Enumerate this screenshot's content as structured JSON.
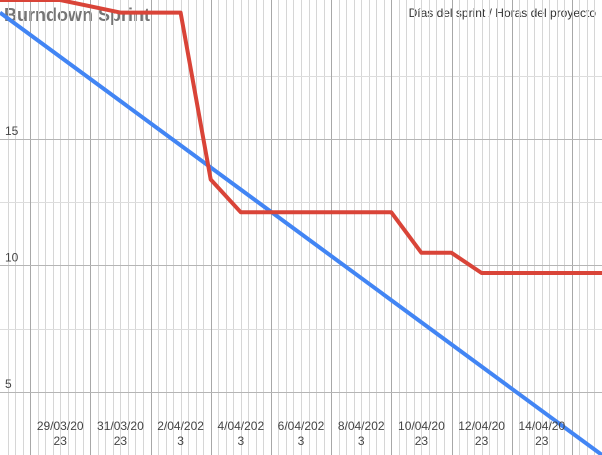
{
  "chart_data": {
    "type": "line",
    "title": "Burndown Sprint",
    "subtitle": "Días del sprint / Horas del proyecto",
    "x_tick_labels": [
      [
        "29/03/20",
        "23"
      ],
      [
        "31/03/20",
        "23"
      ],
      [
        "2/04/202",
        "3"
      ],
      [
        "4/04/202",
        "3"
      ],
      [
        "6/04/202",
        "3"
      ],
      [
        "8/04/202",
        "3"
      ],
      [
        "10/04/20",
        "23"
      ],
      [
        "12/04/20",
        "23"
      ],
      [
        "14/04/20",
        "23"
      ]
    ],
    "y_ticks": [
      5,
      10,
      15
    ],
    "ylim": [
      2.5,
      20.5
    ],
    "x_start": "2023-03-27",
    "x_end": "2023-04-16",
    "grid": true,
    "series": [
      {
        "color": "#d94438",
        "points": [
          [
            "2023-03-27",
            20.5
          ],
          [
            "2023-03-29",
            20.5
          ],
          [
            "2023-03-31",
            20.0
          ],
          [
            "2023-04-01",
            20.0
          ],
          [
            "2023-04-02",
            20.0
          ],
          [
            "2023-04-03",
            13.4
          ],
          [
            "2023-04-04",
            12.1
          ],
          [
            "2023-04-06",
            12.1
          ],
          [
            "2023-04-08",
            12.1
          ],
          [
            "2023-04-09",
            12.1
          ],
          [
            "2023-04-10",
            10.5
          ],
          [
            "2023-04-11",
            10.5
          ],
          [
            "2023-04-12",
            9.7
          ],
          [
            "2023-04-14",
            9.7
          ],
          [
            "2023-04-16",
            9.7
          ]
        ]
      },
      {
        "color": "#4285f4",
        "points": [
          [
            "2023-03-27",
            20.0
          ],
          [
            "2023-04-16",
            2.5
          ]
        ]
      }
    ]
  }
}
